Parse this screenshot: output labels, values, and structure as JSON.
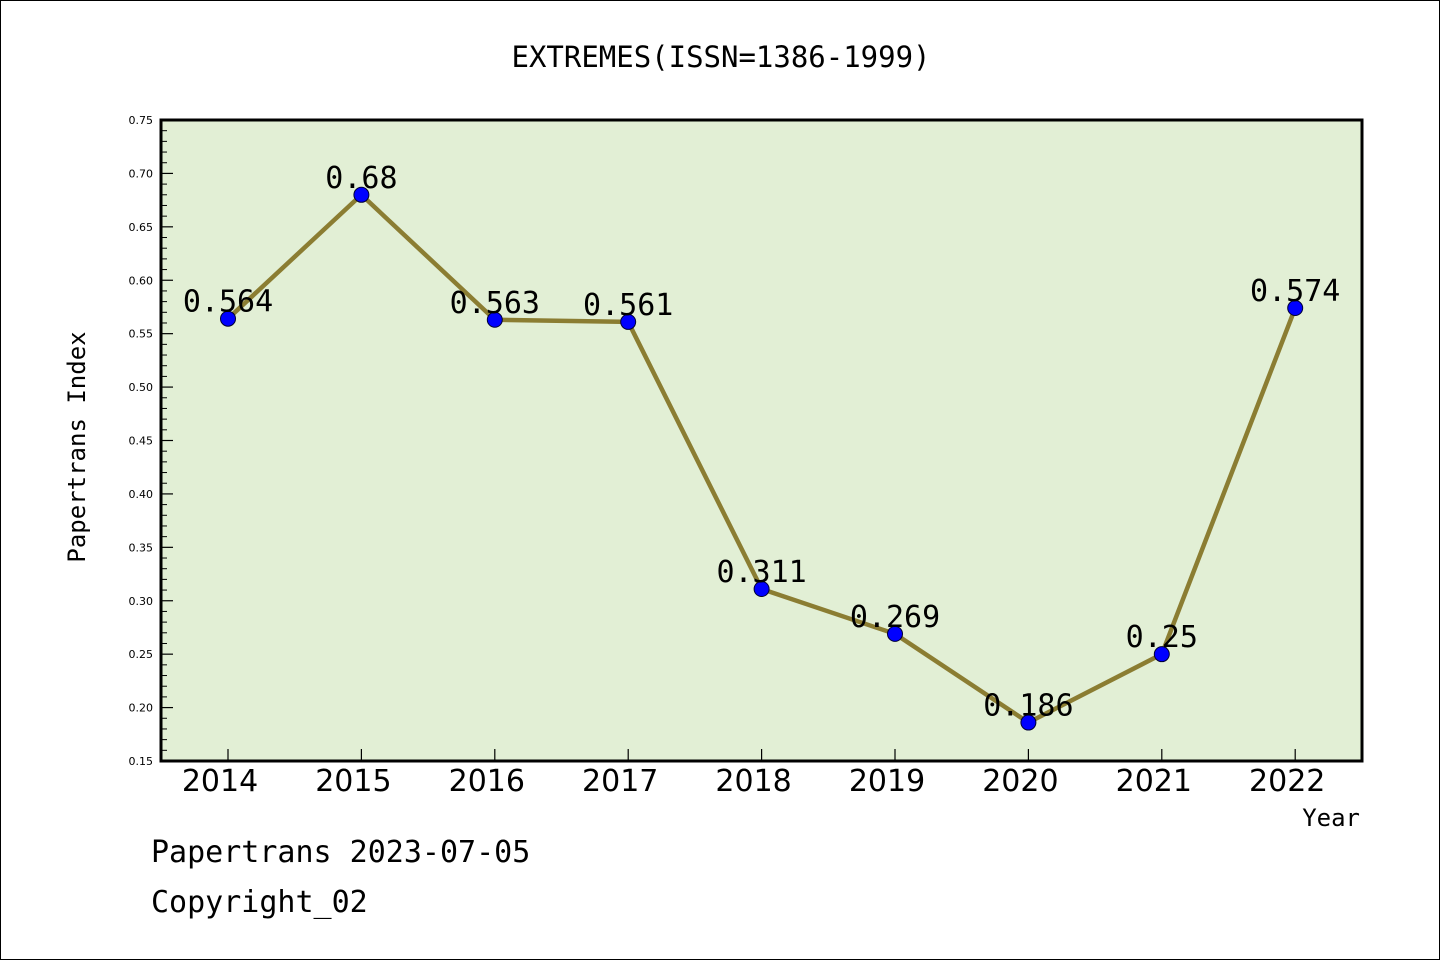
{
  "chart_data": {
    "type": "line",
    "title": "EXTREMES(ISSN=1386-1999)",
    "xlabel": "Year",
    "ylabel": "Papertrans Index",
    "categories": [
      "2014",
      "2015",
      "2016",
      "2017",
      "2018",
      "2019",
      "2020",
      "2021",
      "2022"
    ],
    "series": [
      {
        "values": [
          0.564,
          0.68,
          0.563,
          0.561,
          0.311,
          0.269,
          0.186,
          0.25,
          0.574
        ],
        "data_labels": [
          "0.564",
          "0.68",
          "0.563",
          "0.561",
          "0.311",
          "0.269",
          "0.186",
          "0.25",
          "0.574"
        ],
        "line_color": "#8b7d32",
        "marker_color": "#0000ff"
      }
    ],
    "ylim": [
      0.15,
      0.75
    ],
    "yticks": [
      "0.15",
      "0.20",
      "0.25",
      "0.30",
      "0.35",
      "0.40",
      "0.45",
      "0.50",
      "0.55",
      "0.60",
      "0.65",
      "0.70",
      "0.75"
    ],
    "grid": false,
    "plot_background": "#e2efd5"
  },
  "footer": {
    "line1": "Papertrans 2023-07-05",
    "line2": "Copyright_02"
  }
}
